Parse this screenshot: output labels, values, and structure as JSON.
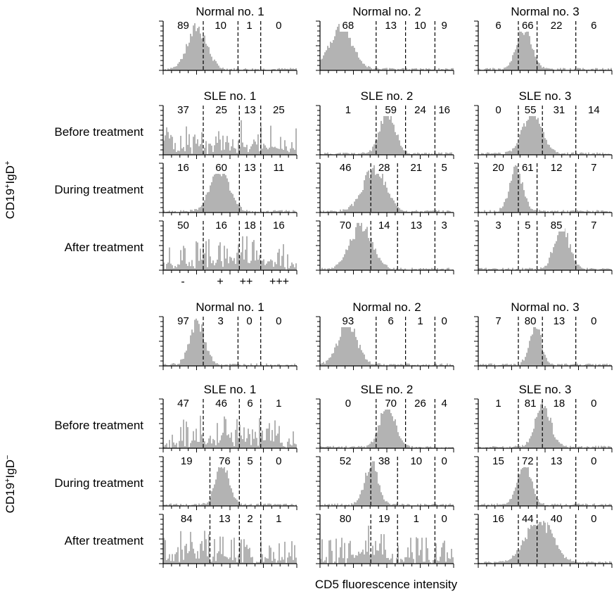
{
  "colors": {
    "histogram": "#b3b3b3",
    "axis": "#000000",
    "gate": "#000000"
  },
  "sections": [
    {
      "population": "CD19+IgD+",
      "population_base": "CD19",
      "population_sup1": "+",
      "population_mid": "IgD",
      "population_sup2": "+"
    },
    {
      "population": "CD19+IgD−",
      "population_base": "CD19",
      "population_sup1": "+",
      "population_mid": "IgD",
      "population_sup2": "−"
    }
  ],
  "subject_titles": {
    "normal": [
      "Normal no. 1",
      "Normal no. 2",
      "Normal no. 3"
    ],
    "sle": [
      "SLE no. 1",
      "SLE no. 2",
      "SLE no. 3"
    ]
  },
  "conditions": [
    "Before treatment",
    "During treatment",
    "After treatment"
  ],
  "gate_labels": [
    "-",
    "+",
    "++",
    "+++"
  ],
  "x_axis_title": "CD5 fluorescence intensity",
  "chart_data": {
    "type": "histogram",
    "xlabel": "CD5 fluorescence intensity",
    "gates": [
      "-",
      "+",
      "++",
      "+++"
    ],
    "panels": [
      {
        "population": "CD19+IgD+",
        "subject": "Normal no. 1",
        "condition": "",
        "percentages": [
          89,
          10,
          1,
          0
        ],
        "gate_positions": [
          0.3,
          0.56,
          0.73
        ],
        "peak": 0.25,
        "spread": 0.1,
        "noisy": false
      },
      {
        "population": "CD19+IgD+",
        "subject": "Normal no. 2",
        "condition": "",
        "percentages": [
          68,
          13,
          10,
          9
        ],
        "gate_positions": [
          0.42,
          0.64,
          0.86
        ],
        "peak": 0.15,
        "spread": 0.12,
        "noisy": false
      },
      {
        "population": "CD19+IgD+",
        "subject": "Normal no. 3",
        "condition": "",
        "percentages": [
          6,
          66,
          22,
          6
        ],
        "gate_positions": [
          0.3,
          0.44,
          0.73
        ],
        "peak": 0.34,
        "spread": 0.08,
        "noisy": false
      },
      {
        "population": "CD19+IgD+",
        "subject": "SLE no. 1",
        "condition": "Before treatment",
        "percentages": [
          37,
          25,
          13,
          25
        ],
        "gate_positions": [
          0.3,
          0.57,
          0.73
        ],
        "peak": 0.5,
        "spread": 0.3,
        "noisy": true
      },
      {
        "population": "CD19+IgD+",
        "subject": "SLE no. 2",
        "condition": "Before treatment",
        "percentages": [
          1,
          59,
          24,
          16
        ],
        "gate_positions": [
          0.42,
          0.64,
          0.86
        ],
        "peak": 0.5,
        "spread": 0.08,
        "noisy": false
      },
      {
        "population": "CD19+IgD+",
        "subject": "SLE no. 3",
        "condition": "Before treatment",
        "percentages": [
          0,
          55,
          31,
          14
        ],
        "gate_positions": [
          0.3,
          0.48,
          0.73
        ],
        "peak": 0.4,
        "spread": 0.1,
        "noisy": false
      },
      {
        "population": "CD19+IgD+",
        "subject": "SLE no. 1",
        "condition": "During treatment",
        "percentages": [
          16,
          60,
          13,
          11
        ],
        "gate_positions": [
          0.3,
          0.57,
          0.73
        ],
        "peak": 0.42,
        "spread": 0.1,
        "noisy": false
      },
      {
        "population": "CD19+IgD+",
        "subject": "SLE no. 2",
        "condition": "During treatment",
        "percentages": [
          46,
          28,
          21,
          5
        ],
        "gate_positions": [
          0.38,
          0.58,
          0.86
        ],
        "peak": 0.4,
        "spread": 0.12,
        "noisy": false
      },
      {
        "population": "CD19+IgD+",
        "subject": "SLE no. 3",
        "condition": "During treatment",
        "percentages": [
          20,
          61,
          12,
          7
        ],
        "gate_positions": [
          0.3,
          0.44,
          0.73
        ],
        "peak": 0.28,
        "spread": 0.07,
        "noisy": false
      },
      {
        "population": "CD19+IgD+",
        "subject": "SLE no. 1",
        "condition": "After treatment",
        "percentages": [
          50,
          16,
          18,
          16
        ],
        "gate_positions": [
          0.3,
          0.57,
          0.73
        ],
        "peak": 0.5,
        "spread": 0.3,
        "noisy": true
      },
      {
        "population": "CD19+IgD+",
        "subject": "SLE no. 2",
        "condition": "After treatment",
        "percentages": [
          70,
          14,
          13,
          3
        ],
        "gate_positions": [
          0.38,
          0.58,
          0.86
        ],
        "peak": 0.3,
        "spread": 0.12,
        "noisy": false
      },
      {
        "population": "CD19+IgD+",
        "subject": "SLE no. 3",
        "condition": "After treatment",
        "percentages": [
          3,
          5,
          85,
          7
        ],
        "gate_positions": [
          0.3,
          0.44,
          0.73
        ],
        "peak": 0.62,
        "spread": 0.08,
        "noisy": false
      },
      {
        "population": "CD19+IgD−",
        "subject": "Normal no. 1",
        "condition": "",
        "percentages": [
          97,
          3,
          0,
          0
        ],
        "gate_positions": [
          0.3,
          0.56,
          0.73
        ],
        "peak": 0.25,
        "spread": 0.08,
        "noisy": false
      },
      {
        "population": "CD19+IgD−",
        "subject": "Normal no. 2",
        "condition": "",
        "percentages": [
          93,
          6,
          1,
          0
        ],
        "gate_positions": [
          0.42,
          0.64,
          0.86
        ],
        "peak": 0.2,
        "spread": 0.1,
        "noisy": false
      },
      {
        "population": "CD19+IgD−",
        "subject": "Normal no. 3",
        "condition": "",
        "percentages": [
          7,
          80,
          13,
          0
        ],
        "gate_positions": [
          0.3,
          0.48,
          0.73
        ],
        "peak": 0.42,
        "spread": 0.06,
        "noisy": false
      },
      {
        "population": "CD19+IgD−",
        "subject": "SLE no. 1",
        "condition": "Before treatment",
        "percentages": [
          47,
          46,
          6,
          1
        ],
        "gate_positions": [
          0.3,
          0.57,
          0.73
        ],
        "peak": 0.5,
        "spread": 0.3,
        "noisy": true
      },
      {
        "population": "CD19+IgD−",
        "subject": "SLE no. 2",
        "condition": "Before treatment",
        "percentages": [
          0,
          70,
          26,
          4
        ],
        "gate_positions": [
          0.42,
          0.64,
          0.86
        ],
        "peak": 0.5,
        "spread": 0.08,
        "noisy": false
      },
      {
        "population": "CD19+IgD−",
        "subject": "SLE no. 3",
        "condition": "Before treatment",
        "percentages": [
          1,
          81,
          18,
          0
        ],
        "gate_positions": [
          0.3,
          0.48,
          0.73
        ],
        "peak": 0.48,
        "spread": 0.08,
        "noisy": false
      },
      {
        "population": "CD19+IgD−",
        "subject": "SLE no. 1",
        "condition": "During treatment",
        "percentages": [
          19,
          76,
          5,
          0
        ],
        "gate_positions": [
          0.35,
          0.57,
          0.73
        ],
        "peak": 0.44,
        "spread": 0.07,
        "noisy": false
      },
      {
        "population": "CD19+IgD−",
        "subject": "SLE no. 2",
        "condition": "During treatment",
        "percentages": [
          52,
          38,
          10,
          0
        ],
        "gate_positions": [
          0.38,
          0.58,
          0.86
        ],
        "peak": 0.38,
        "spread": 0.07,
        "noisy": false
      },
      {
        "population": "CD19+IgD−",
        "subject": "SLE no. 3",
        "condition": "During treatment",
        "percentages": [
          15,
          72,
          13,
          0
        ],
        "gate_positions": [
          0.3,
          0.44,
          0.73
        ],
        "peak": 0.34,
        "spread": 0.07,
        "noisy": false
      },
      {
        "population": "CD19+IgD−",
        "subject": "SLE no. 1",
        "condition": "After treatment",
        "percentages": [
          84,
          13,
          2,
          1
        ],
        "gate_positions": [
          0.35,
          0.57,
          0.73
        ],
        "peak": 0.2,
        "spread": 0.2,
        "noisy": true
      },
      {
        "population": "CD19+IgD−",
        "subject": "SLE no. 2",
        "condition": "After treatment",
        "percentages": [
          80,
          19,
          1,
          0
        ],
        "gate_positions": [
          0.38,
          0.58,
          0.86
        ],
        "peak": 0.35,
        "spread": 0.12,
        "noisy": true
      },
      {
        "population": "CD19+IgD−",
        "subject": "SLE no. 3",
        "condition": "After treatment",
        "percentages": [
          16,
          44,
          40,
          0
        ],
        "gate_positions": [
          0.3,
          0.44,
          0.73
        ],
        "peak": 0.45,
        "spread": 0.14,
        "noisy": false
      }
    ]
  }
}
